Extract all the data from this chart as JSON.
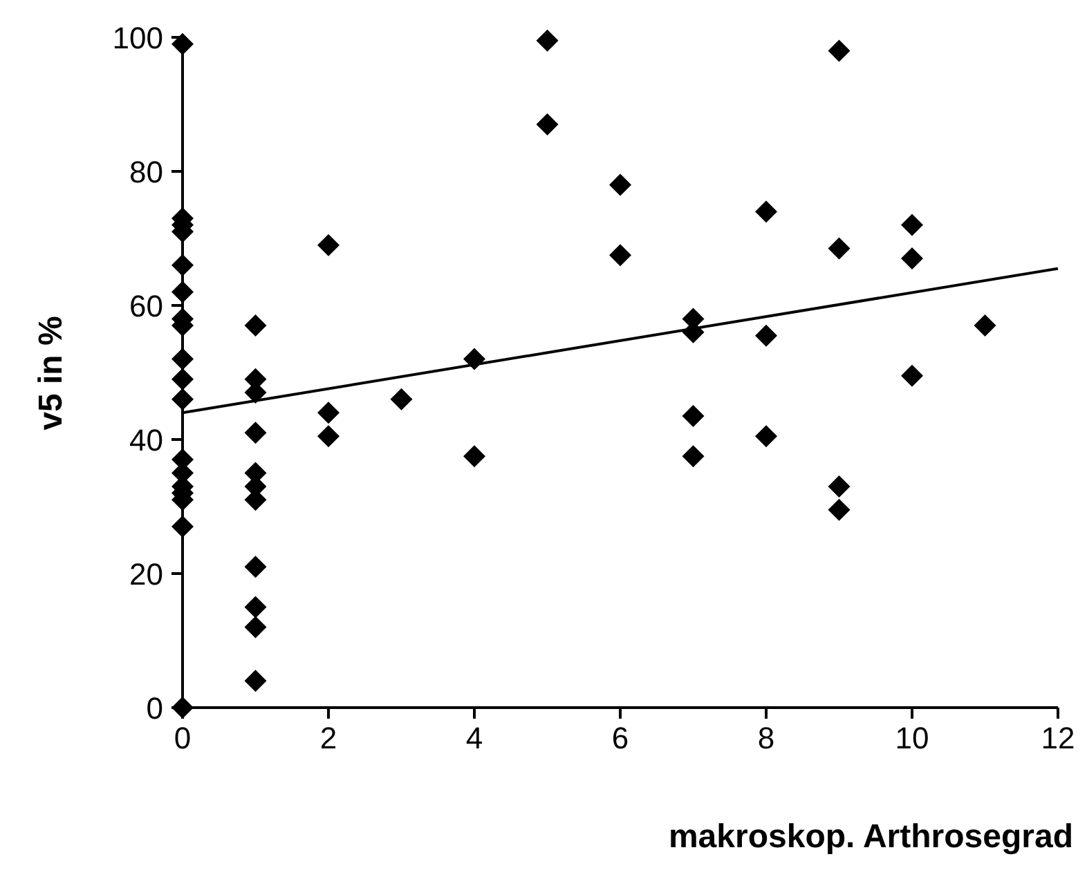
{
  "chart_data": {
    "type": "scatter",
    "xlabel": "makroskop. Arthrosegrad",
    "ylabel": "v5 in %",
    "xlim": [
      0,
      12
    ],
    "ylim": [
      0,
      100
    ],
    "xticks": [
      0,
      2,
      4,
      6,
      8,
      10,
      12
    ],
    "yticks": [
      0,
      20,
      40,
      60,
      80,
      100
    ],
    "grid": false,
    "legend": false,
    "series": [
      {
        "type": "scatter",
        "marker": "diamond",
        "color": "#000000",
        "x": [
          0,
          0,
          0,
          0,
          0,
          0,
          0,
          0,
          0,
          0,
          0,
          0,
          0,
          0,
          0,
          0,
          0,
          0,
          1,
          1,
          1,
          1,
          1,
          1,
          1,
          1,
          1,
          1,
          1,
          2,
          2,
          2,
          3,
          4,
          4,
          5,
          5,
          6,
          6,
          7,
          7,
          7,
          7,
          8,
          8,
          8,
          9,
          9,
          9,
          9,
          10,
          10,
          10,
          11
        ],
        "values": [
          99,
          73,
          72,
          71,
          66,
          62,
          58,
          57,
          52,
          49,
          46,
          37,
          35,
          33,
          32,
          31,
          27,
          0,
          57,
          49,
          47,
          41,
          35,
          33,
          31,
          21,
          15,
          12,
          4,
          69,
          44,
          40.5,
          46,
          52,
          37.5,
          99.5,
          87,
          78,
          67.5,
          58,
          56,
          43.5,
          37.5,
          74,
          55.5,
          40.5,
          98,
          68.5,
          33,
          29.5,
          72,
          67,
          49.5,
          57
        ]
      },
      {
        "type": "line",
        "marker": "none",
        "color": "#000000",
        "x": [
          0,
          12
        ],
        "values": [
          44,
          65.5
        ]
      }
    ]
  }
}
